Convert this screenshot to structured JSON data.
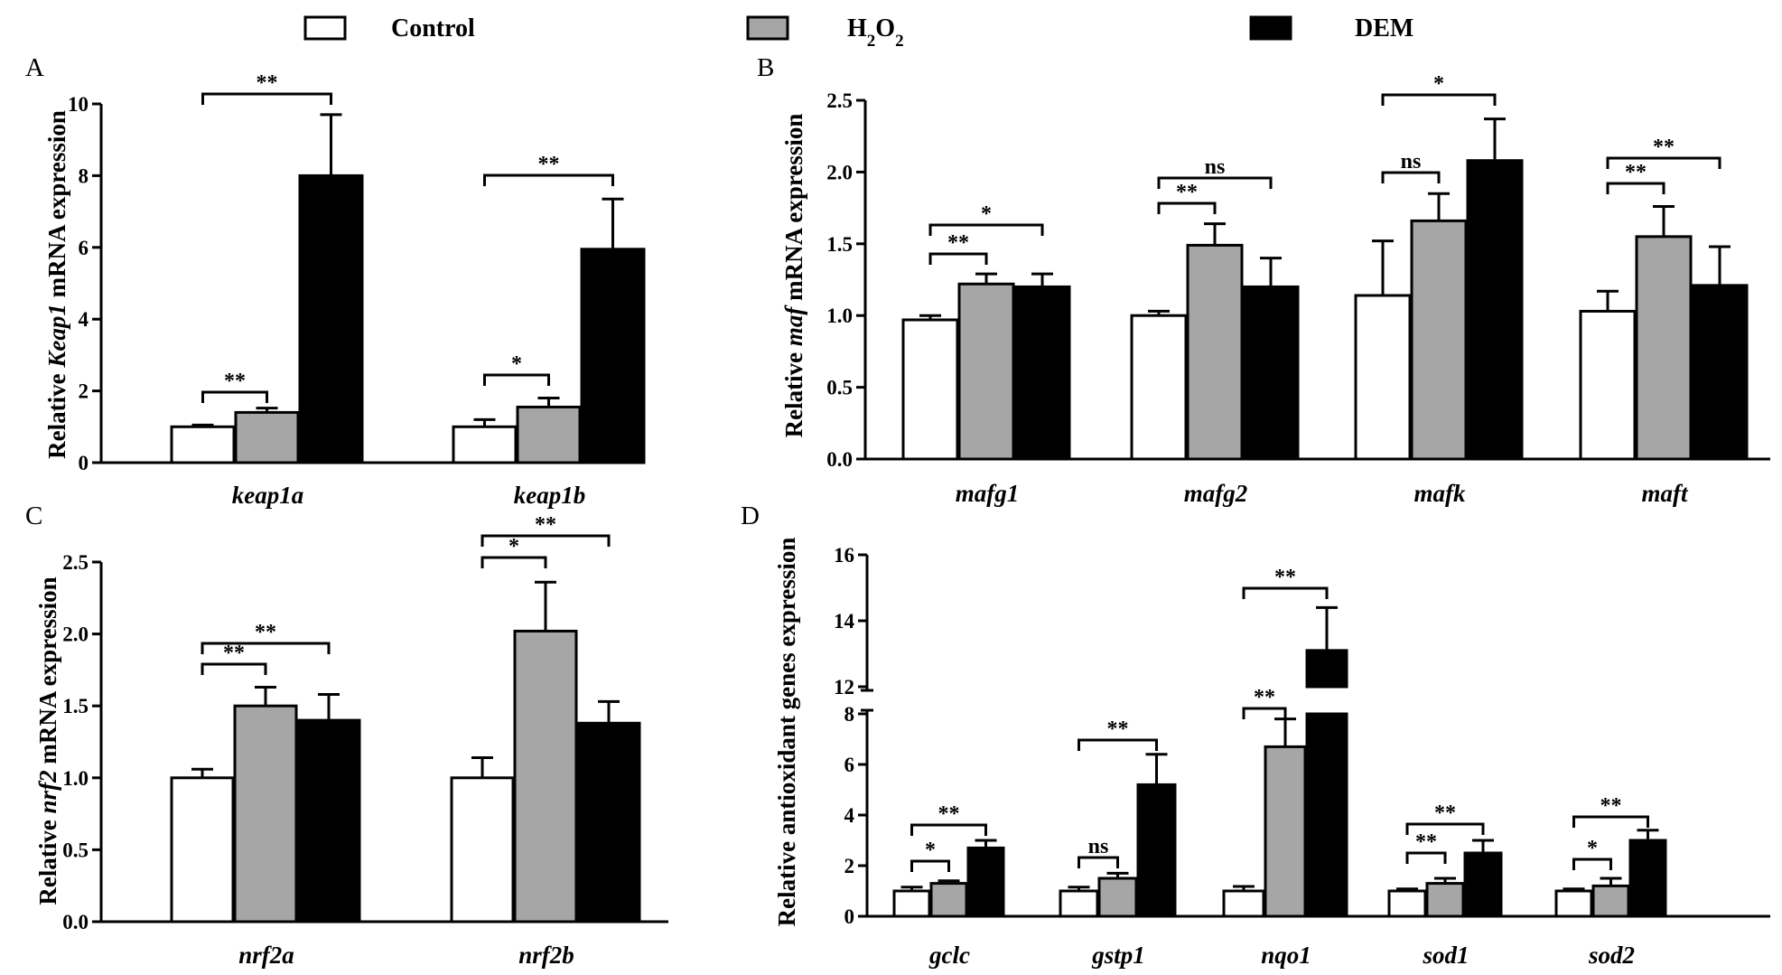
{
  "legend": [
    {
      "label": "Control",
      "color": "#ffffff"
    },
    {
      "label": "H2O2",
      "color": "#a6a6a6"
    },
    {
      "label": "DEM",
      "color": "#000000"
    }
  ],
  "chart_data": [
    {
      "panel": "A",
      "type": "bar",
      "ylabel": "Relative Keap1 mRNA expression",
      "ylabel_parts": [
        "Relative ",
        "Keap1",
        " mRNA expression"
      ],
      "ylim": [
        0,
        10
      ],
      "yticks": [
        "0",
        "2",
        "4",
        "6",
        "8",
        "10"
      ],
      "categories": [
        "keap1a",
        "keap1b"
      ],
      "series": [
        {
          "name": "Control",
          "values": [
            1.0,
            1.0
          ],
          "errors": [
            0.05,
            0.2
          ]
        },
        {
          "name": "H2O2",
          "values": [
            1.4,
            1.55
          ],
          "errors": [
            0.12,
            0.25
          ]
        },
        {
          "name": "DEM",
          "values": [
            8.0,
            5.95
          ],
          "errors": [
            1.7,
            1.4
          ]
        }
      ],
      "significance": [
        {
          "category": 0,
          "from": 0,
          "to": 1,
          "label": "**"
        },
        {
          "category": 0,
          "from": 0,
          "to": 2,
          "label": "**"
        },
        {
          "category": 1,
          "from": 0,
          "to": 1,
          "label": "*"
        },
        {
          "category": 1,
          "from": 0,
          "to": 2,
          "label": "**"
        }
      ]
    },
    {
      "panel": "B",
      "type": "bar",
      "ylabel": "Relative maf mRNA expression",
      "ylabel_parts": [
        "Relative ",
        "maf",
        " mRNA expression"
      ],
      "ylim": [
        0,
        2.5
      ],
      "yticks": [
        "0.0",
        "0.5",
        "1.0",
        "1.5",
        "2.0",
        "2.5"
      ],
      "categories": [
        "mafg1",
        "mafg2",
        "mafk",
        "maft"
      ],
      "series": [
        {
          "name": "Control",
          "values": [
            0.97,
            1.0,
            1.14,
            1.03
          ],
          "errors": [
            0.03,
            0.03,
            0.38,
            0.14
          ]
        },
        {
          "name": "H2O2",
          "values": [
            1.22,
            1.49,
            1.66,
            1.55
          ],
          "errors": [
            0.07,
            0.15,
            0.19,
            0.21
          ]
        },
        {
          "name": "DEM",
          "values": [
            1.2,
            1.2,
            2.08,
            1.21
          ],
          "errors": [
            0.09,
            0.2,
            0.29,
            0.27
          ]
        }
      ],
      "significance": [
        {
          "category": 0,
          "from": 0,
          "to": 1,
          "label": "**"
        },
        {
          "category": 0,
          "from": 0,
          "to": 2,
          "label": "*"
        },
        {
          "category": 1,
          "from": 0,
          "to": 1,
          "label": "**"
        },
        {
          "category": 1,
          "from": 0,
          "to": 2,
          "label": "ns"
        },
        {
          "category": 2,
          "from": 0,
          "to": 1,
          "label": "ns"
        },
        {
          "category": 2,
          "from": 0,
          "to": 2,
          "label": "*"
        },
        {
          "category": 3,
          "from": 0,
          "to": 1,
          "label": "**"
        },
        {
          "category": 3,
          "from": 0,
          "to": 2,
          "label": "**"
        }
      ]
    },
    {
      "panel": "C",
      "type": "bar",
      "ylabel": "Relative nrf2 mRNA expression",
      "ylabel_parts": [
        "Relative ",
        "nrf2",
        " mRNA expression"
      ],
      "ylim": [
        0,
        2.5
      ],
      "yticks": [
        "0.0",
        "0.5",
        "1.0",
        "1.5",
        "2.0",
        "2.5"
      ],
      "categories": [
        "nrf2a",
        "nrf2b"
      ],
      "series": [
        {
          "name": "Control",
          "values": [
            1.0,
            1.0
          ],
          "errors": [
            0.06,
            0.14
          ]
        },
        {
          "name": "H2O2",
          "values": [
            1.5,
            2.02
          ],
          "errors": [
            0.13,
            0.34
          ]
        },
        {
          "name": "DEM",
          "values": [
            1.4,
            1.38
          ],
          "errors": [
            0.18,
            0.15
          ]
        }
      ],
      "significance": [
        {
          "category": 0,
          "from": 0,
          "to": 1,
          "label": "**"
        },
        {
          "category": 0,
          "from": 0,
          "to": 2,
          "label": "**"
        },
        {
          "category": 1,
          "from": 0,
          "to": 1,
          "label": "*"
        },
        {
          "category": 1,
          "from": 0,
          "to": 2,
          "label": "**"
        }
      ]
    },
    {
      "panel": "D",
      "type": "bar",
      "ylabel": "Relative  antioxidant genes  expression",
      "ylabel_parts": [
        "Relative  antioxidant genes  expression"
      ],
      "ylim": [
        0,
        16
      ],
      "axis_break": [
        8,
        12
      ],
      "yticks": [
        "0",
        "2",
        "4",
        "6",
        "8",
        "12",
        "14",
        "16"
      ],
      "categories": [
        "gclc",
        "gstp1",
        "nqo1",
        "sod1",
        "sod2"
      ],
      "series": [
        {
          "name": "Control",
          "values": [
            1.0,
            1.0,
            1.0,
            1.0,
            1.0
          ],
          "errors": [
            0.15,
            0.15,
            0.18,
            0.08,
            0.08
          ]
        },
        {
          "name": "H2O2",
          "values": [
            1.3,
            1.5,
            6.7,
            1.3,
            1.2
          ],
          "errors": [
            0.1,
            0.2,
            1.1,
            0.2,
            0.3
          ]
        },
        {
          "name": "DEM",
          "values": [
            2.7,
            5.2,
            13.1,
            2.5,
            3.0
          ],
          "errors": [
            0.3,
            1.2,
            1.3,
            0.5,
            0.4
          ]
        }
      ],
      "significance": [
        {
          "category": 0,
          "from": 0,
          "to": 1,
          "label": "*"
        },
        {
          "category": 0,
          "from": 0,
          "to": 2,
          "label": "**"
        },
        {
          "category": 1,
          "from": 0,
          "to": 1,
          "label": "ns"
        },
        {
          "category": 1,
          "from": 0,
          "to": 2,
          "label": "**"
        },
        {
          "category": 2,
          "from": 0,
          "to": 1,
          "label": "**"
        },
        {
          "category": 2,
          "from": 0,
          "to": 2,
          "label": "**"
        },
        {
          "category": 3,
          "from": 0,
          "to": 1,
          "label": "**"
        },
        {
          "category": 3,
          "from": 0,
          "to": 2,
          "label": "**"
        },
        {
          "category": 4,
          "from": 0,
          "to": 1,
          "label": "*"
        },
        {
          "category": 4,
          "from": 0,
          "to": 2,
          "label": "**"
        }
      ]
    }
  ]
}
